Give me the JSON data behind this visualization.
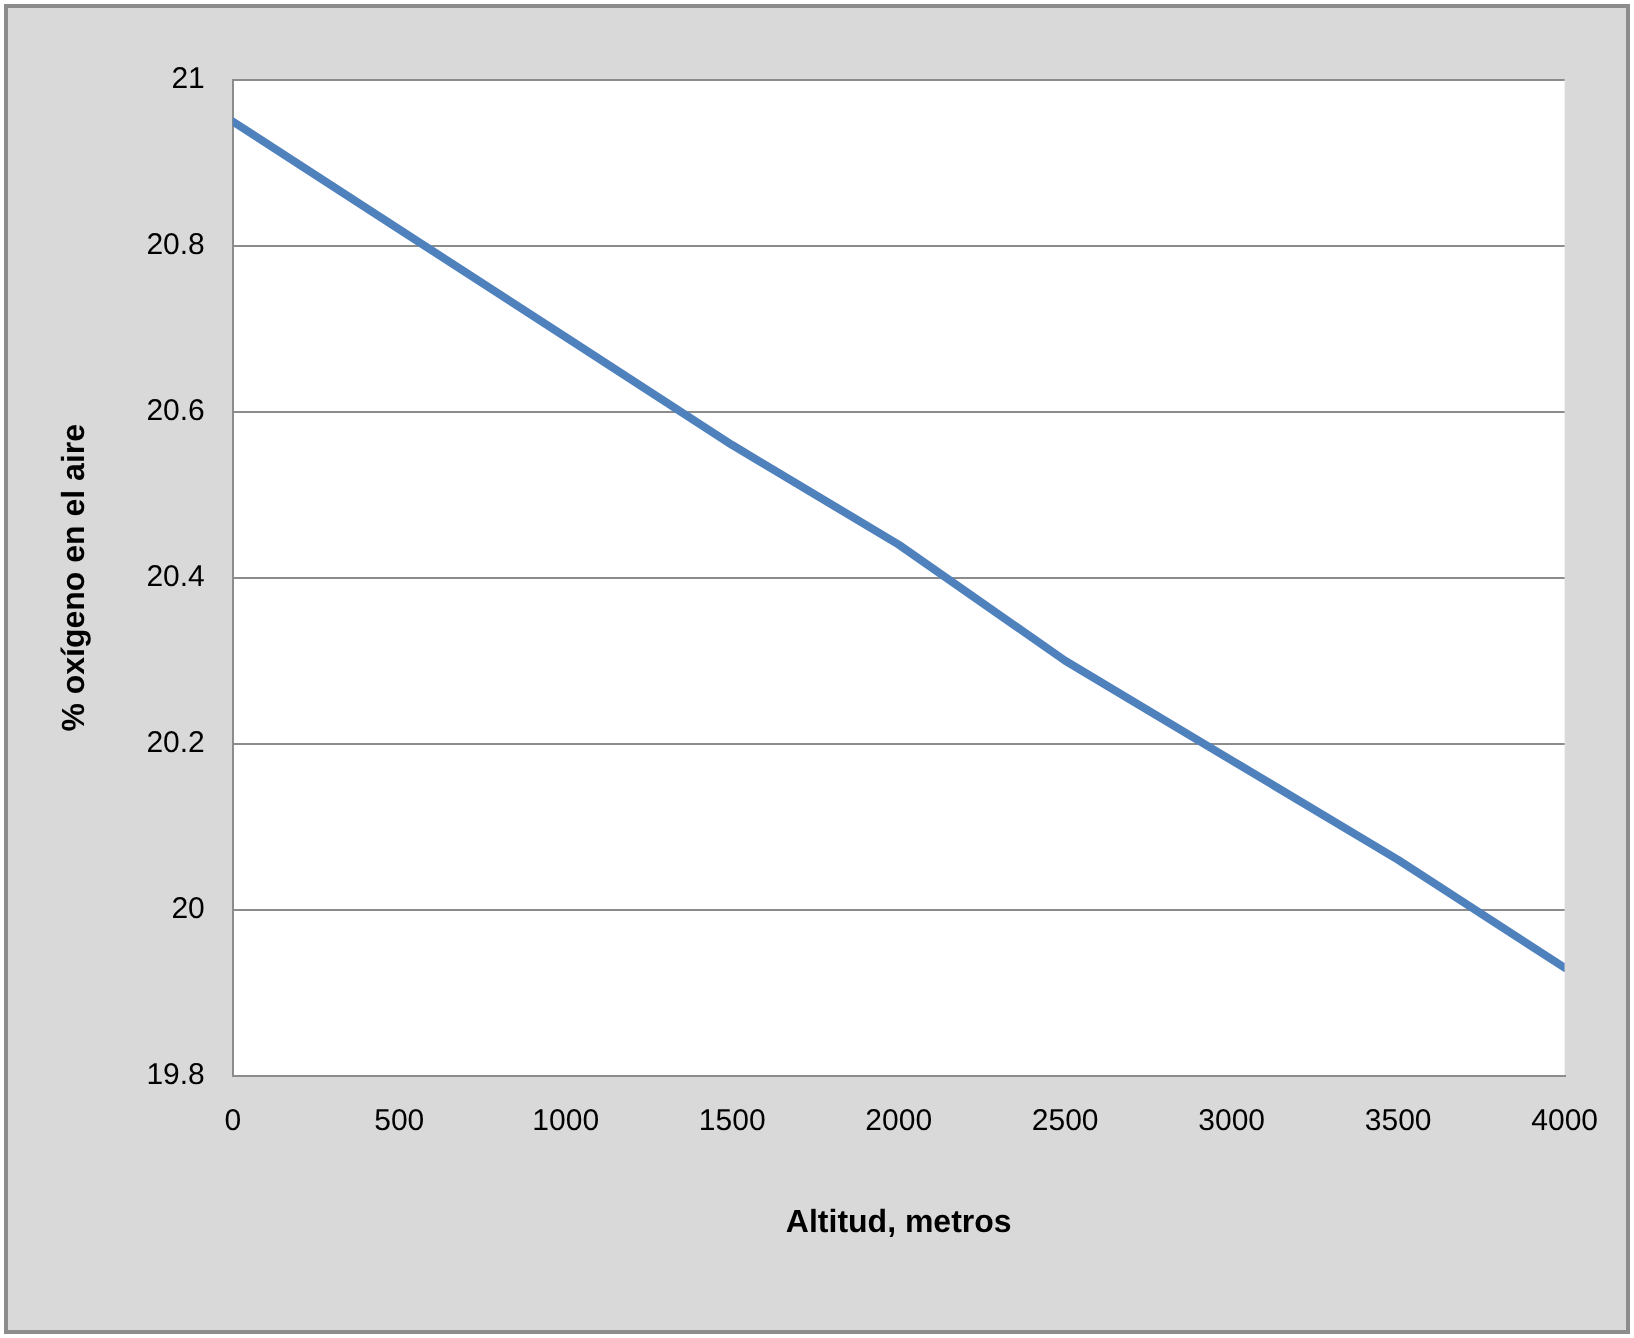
{
  "chart_data": {
    "type": "line",
    "xlabel": "Altitud, metros",
    "ylabel": "% oxígeno en el aire",
    "x": [
      0,
      500,
      1000,
      1500,
      2000,
      2500,
      3000,
      3500,
      4000
    ],
    "series": [
      {
        "color": "#4f81bd",
        "values": [
          20.95,
          20.82,
          20.69,
          20.56,
          20.44,
          20.3,
          20.18,
          20.06,
          19.93
        ]
      }
    ],
    "xlim": [
      0,
      4000
    ],
    "xticks": [
      0,
      500,
      1000,
      1500,
      2000,
      2500,
      3000,
      3500,
      4000
    ],
    "ylim": [
      19.8,
      21
    ],
    "yticks": [
      19.8,
      20,
      20.2,
      20.4,
      20.6,
      20.8,
      21
    ],
    "grid": "y",
    "legend": false,
    "marker": "none",
    "line_style": "solid"
  }
}
